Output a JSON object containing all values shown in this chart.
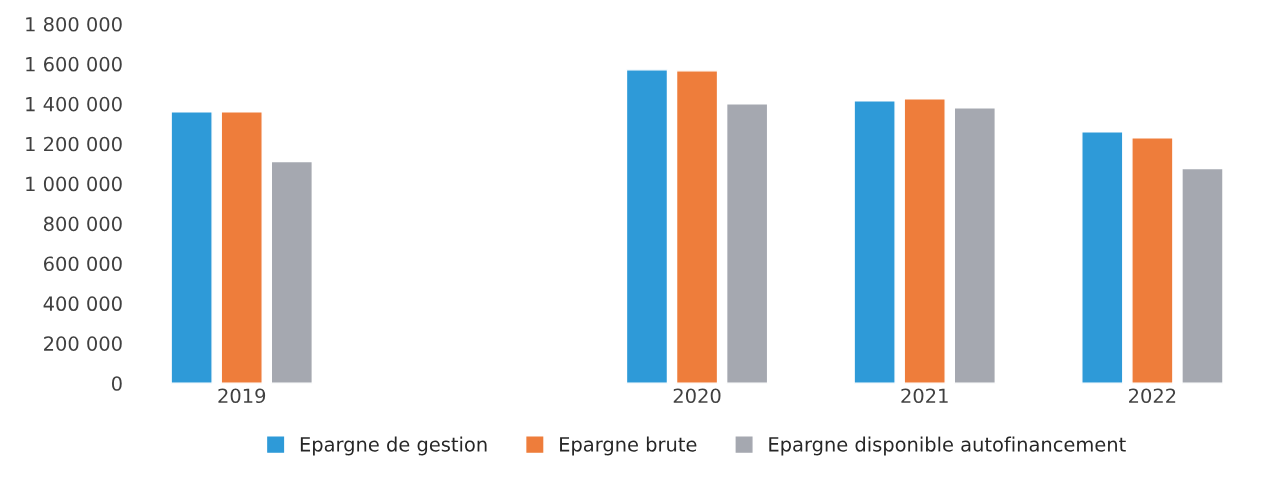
{
  "chart_data": {
    "type": "bar",
    "categories": [
      "2019",
      null,
      "2020",
      "2021",
      "2022"
    ],
    "series": [
      {
        "name": "Epargne de gestion",
        "color": "#2e9ad8",
        "values": [
          1360000,
          null,
          1570000,
          1415000,
          1260000
        ]
      },
      {
        "name": "Epargne brute",
        "color": "#ee7d3b",
        "values": [
          1360000,
          null,
          1565000,
          1425000,
          1230000
        ]
      },
      {
        "name": "Epargne disponible autofinancement",
        "color": "#a5a8b0",
        "values": [
          1110000,
          null,
          1400000,
          1380000,
          1075000
        ]
      }
    ],
    "ylim": [
      0,
      1800000
    ],
    "yticks": [
      0,
      {
        "value": 200000,
        "label": "200 000"
      },
      {
        "value": 400000,
        "label": "400 000"
      },
      {
        "value": 600000,
        "label": "600 000"
      },
      {
        "value": 800000,
        "label": "800 000"
      },
      {
        "value": 1000000,
        "label": "1 000 000"
      },
      {
        "value": 1200000,
        "label": "1 200 000"
      },
      {
        "value": 1400000,
        "label": "1 400 000"
      },
      {
        "value": 1600000,
        "label": "1 600 000"
      },
      {
        "value": 1800000,
        "label": "1 800 000"
      }
    ],
    "grid": false,
    "legend": "bottom"
  }
}
